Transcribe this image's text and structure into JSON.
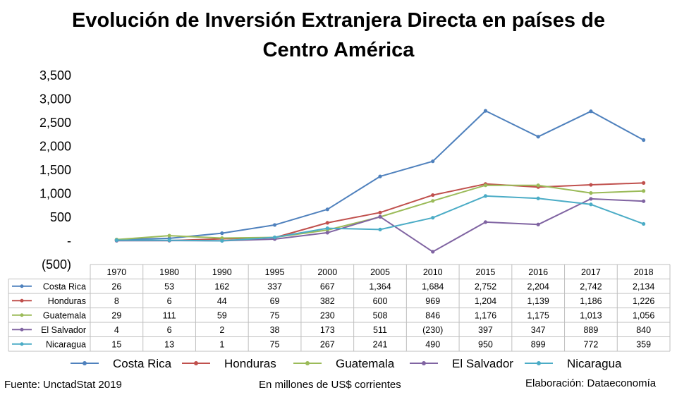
{
  "chart_data": {
    "type": "line",
    "title_line1": "Evolución de Inversión Extranjera Directa en países de",
    "title_line2": "Centro América",
    "categories": [
      "1970",
      "1980",
      "1990",
      "1995",
      "2000",
      "2005",
      "2010",
      "2015",
      "2016",
      "2017",
      "2018"
    ],
    "ylim": [
      -500,
      3500
    ],
    "yticks": [
      3500,
      3000,
      2500,
      2000,
      1500,
      1000,
      500,
      0,
      -500
    ],
    "ytick_labels": [
      "3,500",
      "3,000",
      "2,500",
      "2,000",
      "1,500",
      "1,000",
      "500",
      "-",
      "(500)"
    ],
    "grid": false,
    "legend_position": "bottom",
    "series": [
      {
        "name": "Costa Rica",
        "color": "#4f81bd",
        "values": [
          26,
          53,
          162,
          337,
          667,
          1364,
          1684,
          2752,
          2204,
          2742,
          2134
        ],
        "labels": [
          "26",
          "53",
          "162",
          "337",
          "667",
          "1,364",
          "1,684",
          "2,752",
          "2,204",
          "2,742",
          "2,134"
        ]
      },
      {
        "name": "Honduras",
        "color": "#c0504d",
        "values": [
          8,
          6,
          44,
          69,
          382,
          600,
          969,
          1204,
          1139,
          1186,
          1226
        ],
        "labels": [
          "8",
          "6",
          "44",
          "69",
          "382",
          "600",
          "969",
          "1,204",
          "1,139",
          "1,186",
          "1,226"
        ]
      },
      {
        "name": "Guatemala",
        "color": "#9bbb59",
        "values": [
          29,
          111,
          59,
          75,
          230,
          508,
          846,
          1176,
          1175,
          1013,
          1056
        ],
        "labels": [
          "29",
          "111",
          "59",
          "75",
          "230",
          "508",
          "846",
          "1,176",
          "1,175",
          "1,013",
          "1,056"
        ]
      },
      {
        "name": "El Salvador",
        "color": "#8064a2",
        "values": [
          4,
          6,
          2,
          38,
          173,
          511,
          -230,
          397,
          347,
          889,
          840
        ],
        "labels": [
          "4",
          "6",
          "2",
          "38",
          "173",
          "511",
          "(230)",
          "397",
          "347",
          "889",
          "840"
        ]
      },
      {
        "name": "Nicaragua",
        "color": "#4bacc6",
        "values": [
          15,
          13,
          1,
          75,
          267,
          241,
          490,
          950,
          899,
          772,
          359
        ],
        "labels": [
          "15",
          "13",
          "1",
          "75",
          "267",
          "241",
          "490",
          "950",
          "899",
          "772",
          "359"
        ]
      }
    ]
  },
  "footer": {
    "source": "Fuente: UnctadStat 2019",
    "units": "En millones de US$ corrientes",
    "credit": "Elaboración: Dataeconomía"
  }
}
